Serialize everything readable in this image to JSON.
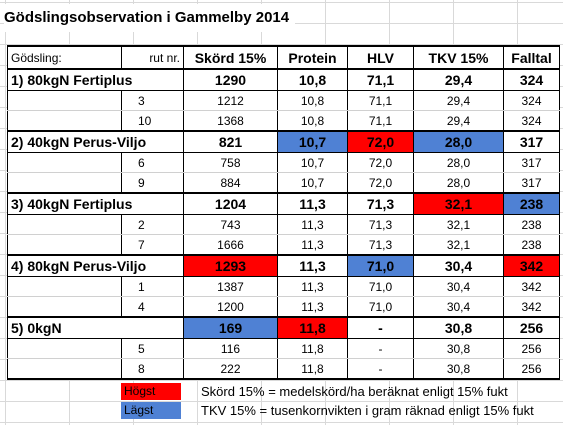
{
  "title": "Gödslingsobservation i Gammelby 2014",
  "header": {
    "godsling": "Gödsling:",
    "rut": "rut nr.",
    "cols": [
      "Skörd 15%",
      "Protein",
      "HLV",
      "TKV 15%",
      "Falltal"
    ]
  },
  "groups": [
    {
      "name": "1) 80kgN Fertiplus",
      "values": [
        "1290",
        "10,8",
        "71,1",
        "29,4",
        "324"
      ],
      "rows": [
        {
          "rut": "3",
          "values": [
            "1212",
            "10,8",
            "71,1",
            "29,4",
            "324"
          ]
        },
        {
          "rut": "10",
          "values": [
            "1368",
            "10,8",
            "71,1",
            "29,4",
            "324"
          ]
        }
      ]
    },
    {
      "name": "2) 40kgN Perus-Viljo",
      "values": [
        "821",
        "10,7",
        "72,0",
        "28,0",
        "317"
      ],
      "rows": [
        {
          "rut": "6",
          "values": [
            "758",
            "10,7",
            "72,0",
            "28,0",
            "317"
          ]
        },
        {
          "rut": "9",
          "values": [
            "884",
            "10,7",
            "72,0",
            "28,0",
            "317"
          ]
        }
      ]
    },
    {
      "name": "3) 40kgN Fertiplus",
      "values": [
        "1204",
        "11,3",
        "71,3",
        "32,1",
        "238"
      ],
      "rows": [
        {
          "rut": "2",
          "values": [
            "743",
            "11,3",
            "71,3",
            "32,1",
            "238"
          ]
        },
        {
          "rut": "7",
          "values": [
            "1666",
            "11,3",
            "71,3",
            "32,1",
            "238"
          ]
        }
      ]
    },
    {
      "name": "4) 80kgN Perus-Viljo",
      "values": [
        "1293",
        "11,3",
        "71,0",
        "30,4",
        "342"
      ],
      "rows": [
        {
          "rut": "1",
          "values": [
            "1387",
            "11,3",
            "71,0",
            "30,4",
            "342"
          ]
        },
        {
          "rut": "4",
          "values": [
            "1200",
            "11,3",
            "71,0",
            "30,4",
            "342"
          ]
        }
      ]
    },
    {
      "name": "5) 0kgN",
      "values": [
        "169",
        "11,8",
        "-",
        "30,8",
        "256"
      ],
      "rows": [
        {
          "rut": "5",
          "values": [
            "116",
            "11,8",
            "-",
            "30,8",
            "256"
          ]
        },
        {
          "rut": "8",
          "values": [
            "222",
            "11,8",
            "-",
            "30,8",
            "256"
          ]
        }
      ]
    }
  ],
  "legend": {
    "high_label": "Högst",
    "low_label": "Lägst",
    "skord_note": "Skörd 15% = medelskörd/ha beräknat enligt 15% fukt",
    "tkv_note": "TKV 15% = tusenkornvikten i gram räknad enligt 15% fukt"
  },
  "colors": {
    "highest": "#ff0000",
    "lowest": "#4f81d4"
  }
}
